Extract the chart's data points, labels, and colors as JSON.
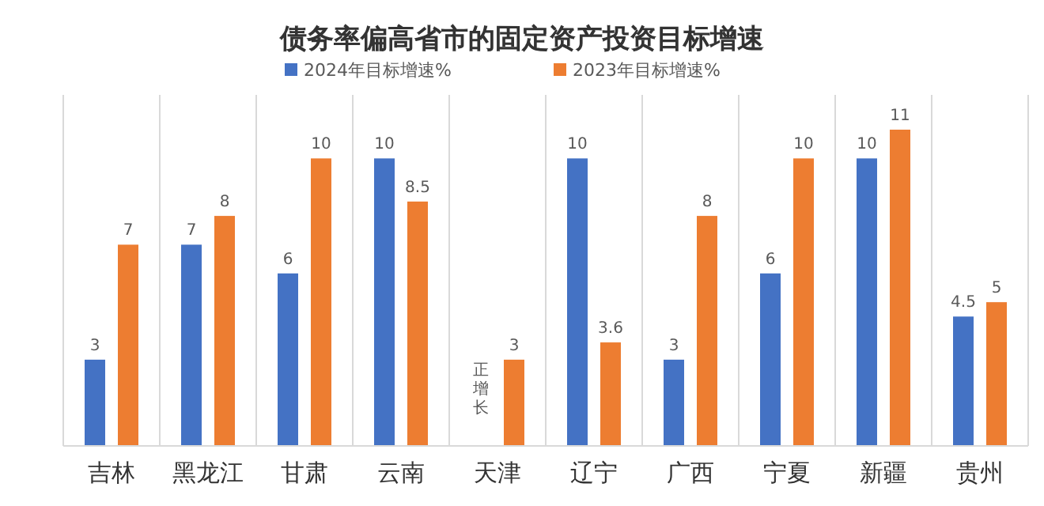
{
  "chart_data": {
    "type": "bar",
    "title": "债务率偏高省市的固定资产投资目标增速",
    "categories": [
      "吉林",
      "黑龙江",
      "甘肃",
      "云南",
      "天津",
      "辽宁",
      "广西",
      "宁夏",
      "新疆",
      "贵州"
    ],
    "series": [
      {
        "name": "2024年目标增速%",
        "color": "#4472c4",
        "values": [
          3,
          7,
          6,
          10,
          null,
          10,
          3,
          6,
          10,
          4.5
        ],
        "value_labels": [
          "3",
          "7",
          "6",
          "10",
          "正增长",
          "10",
          "3",
          "6",
          "10",
          "4.5"
        ]
      },
      {
        "name": "2023年目标增速%",
        "color": "#ed7d31",
        "values": [
          7,
          8,
          10,
          8.5,
          3,
          3.6,
          8,
          10,
          11,
          5
        ],
        "value_labels": [
          "7",
          "8",
          "10",
          "8.5",
          "3",
          "3.6",
          "8",
          "10",
          "11",
          "5"
        ]
      }
    ],
    "legend": "top",
    "grid": "x"
  }
}
